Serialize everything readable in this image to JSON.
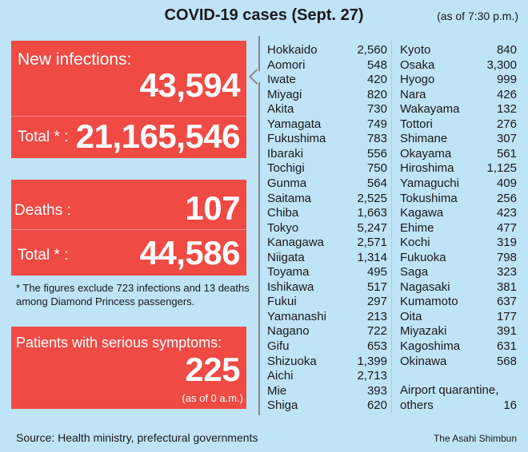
{
  "title": "COVID-19 cases (Sept. 27)",
  "as_of": "(as of 7:30 p.m.)",
  "infections": {
    "label": "New infections:",
    "value": "43,594",
    "total_label": "Total * :",
    "total": "21,165,546"
  },
  "deaths": {
    "label": "Deaths :",
    "value": "107",
    "total_label": "Total * :",
    "total": "44,586"
  },
  "note": "* The figures exclude 723 infections and 13 deaths among Diamond Princess passengers.",
  "serious": {
    "label": "Patients with serious symptoms:",
    "value": "225",
    "as_of": "(as of 0 a.m.)"
  },
  "prefectures_left": [
    [
      "Hokkaido",
      "2,560"
    ],
    [
      "Aomori",
      "548"
    ],
    [
      "Iwate",
      "420"
    ],
    [
      "Miyagi",
      "820"
    ],
    [
      "Akita",
      "730"
    ],
    [
      "Yamagata",
      "749"
    ],
    [
      "Fukushima",
      "783"
    ],
    [
      "Ibaraki",
      "556"
    ],
    [
      "Tochigi",
      "750"
    ],
    [
      "Gunma",
      "564"
    ],
    [
      "Saitama",
      "2,525"
    ],
    [
      "Chiba",
      "1,663"
    ],
    [
      "Tokyo",
      "5,247"
    ],
    [
      "Kanagawa",
      "2,571"
    ],
    [
      "Niigata",
      "1,314"
    ],
    [
      "Toyama",
      "495"
    ],
    [
      "Ishikawa",
      "517"
    ],
    [
      "Fukui",
      "297"
    ],
    [
      "Yamanashi",
      "213"
    ],
    [
      "Nagano",
      "722"
    ],
    [
      "Gifu",
      "653"
    ],
    [
      "Shizuoka",
      "1,399"
    ],
    [
      "Aichi",
      "2,713"
    ],
    [
      "Mie",
      "393"
    ],
    [
      "Shiga",
      "620"
    ]
  ],
  "prefectures_right": [
    [
      "Kyoto",
      "840"
    ],
    [
      "Osaka",
      "3,300"
    ],
    [
      "Hyogo",
      "999"
    ],
    [
      "Nara",
      "426"
    ],
    [
      "Wakayama",
      "132"
    ],
    [
      "Tottori",
      "276"
    ],
    [
      "Shimane",
      "307"
    ],
    [
      "Okayama",
      "561"
    ],
    [
      "Hiroshima",
      "1,125"
    ],
    [
      "Yamaguchi",
      "409"
    ],
    [
      "Tokushima",
      "256"
    ],
    [
      "Kagawa",
      "423"
    ],
    [
      "Ehime",
      "477"
    ],
    [
      "Kochi",
      "319"
    ],
    [
      "Fukuoka",
      "798"
    ],
    [
      "Saga",
      "323"
    ],
    [
      "Nagasaki",
      "381"
    ],
    [
      "Kumamoto",
      "637"
    ],
    [
      "Oita",
      "177"
    ],
    [
      "Miyazaki",
      "391"
    ],
    [
      "Kagoshima",
      "631"
    ],
    [
      "Okinawa",
      "568"
    ]
  ],
  "airport": {
    "label1": "Airport quarantine,",
    "label2": "others",
    "value": "16"
  },
  "source": "Source: Health ministry, prefectural governments",
  "credit": "The Asahi Shimbun",
  "colors": {
    "accent": "#ef4a44",
    "background": "#bfe3f7"
  }
}
